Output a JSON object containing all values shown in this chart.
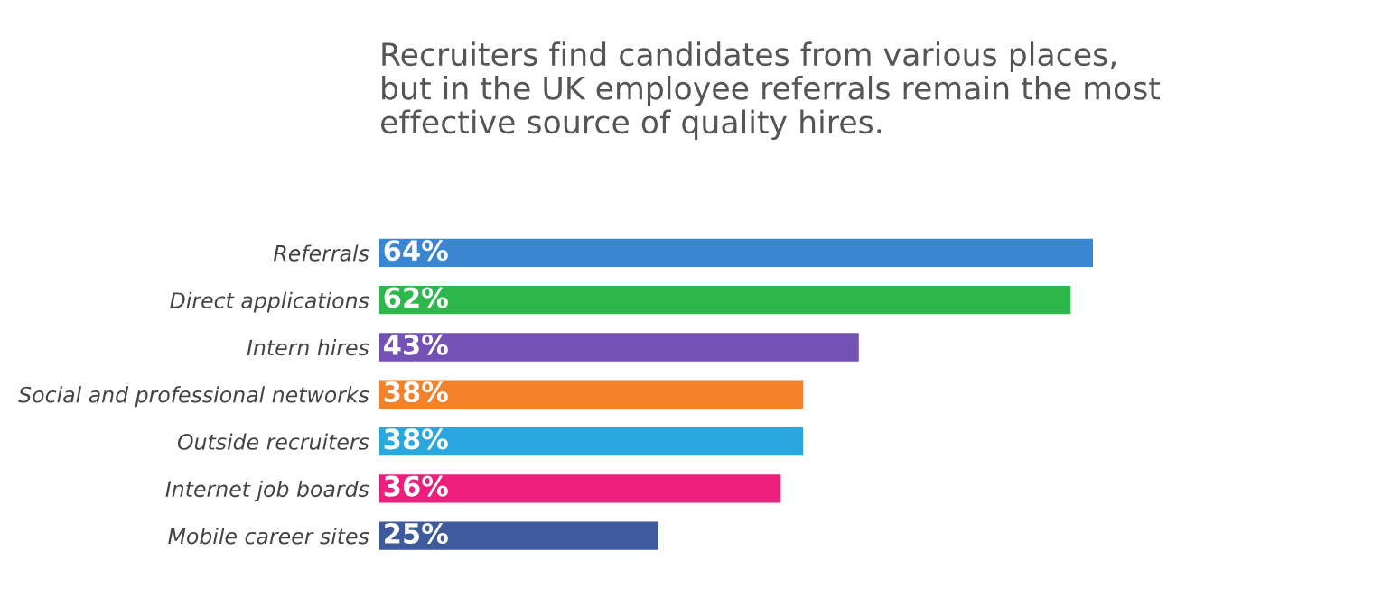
{
  "chart_data": {
    "type": "bar",
    "orientation": "horizontal",
    "title": "Recruiters find candidates from various places,\nbut in the UK employee referrals remain the most\neffective source of quality hires.",
    "categories": [
      "Referrals",
      "Direct applications",
      "Intern hires",
      "Social and professional networks",
      "Outside recruiters",
      "Internet job boards",
      "Mobile career sites"
    ],
    "values": [
      64,
      62,
      43,
      38,
      38,
      36,
      25
    ],
    "value_labels": [
      "64%",
      "62%",
      "43%",
      "38%",
      "38%",
      "36%",
      "25%"
    ],
    "colors": [
      "#3b86d1",
      "#2eb84c",
      "#7451b4",
      "#f5822a",
      "#2ba7df",
      "#ee1f7c",
      "#3d5a9c"
    ],
    "grid": false,
    "legend": false,
    "tick_labels": "y"
  }
}
